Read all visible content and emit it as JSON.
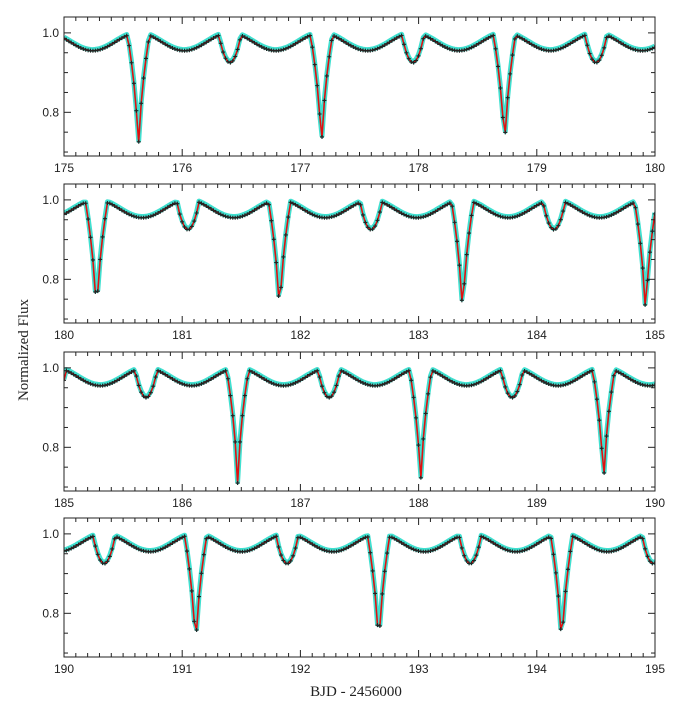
{
  "chart_data": {
    "type": "line",
    "title": "",
    "ylabel": "Normalized Flux",
    "xlabel": "BJD - 2456000",
    "colors": {
      "model": "#e01010",
      "data_points": "#222222",
      "residual_band": "#40e0d0",
      "frame": "#222222"
    },
    "light_curve": {
      "period": 1.5484,
      "primary_eclipse_epoch": 175.63,
      "primary_depth": 0.29,
      "secondary_depth": 0.075,
      "eclipse_half_width_phase": 0.06,
      "out_of_eclipse_flux": 1.0,
      "trough_flux": 0.955,
      "cadence_days": 0.0204
    },
    "panels": [
      {
        "name": "panel-1",
        "xlim": [
          175,
          180
        ],
        "ylim": [
          0.69,
          1.04
        ],
        "xticks": [
          175,
          176,
          177,
          178,
          179,
          180
        ],
        "xtick_labels": [
          "175",
          "176",
          "177",
          "178",
          "179",
          "180"
        ],
        "yticks": [
          0.8,
          1.0
        ],
        "ytick_labels": [
          "0.8",
          "1.0"
        ]
      },
      {
        "name": "panel-2",
        "xlim": [
          180,
          185
        ],
        "ylim": [
          0.69,
          1.04
        ],
        "xticks": [
          180,
          181,
          182,
          183,
          184,
          185
        ],
        "xtick_labels": [
          "180",
          "181",
          "182",
          "183",
          "184",
          "185"
        ],
        "yticks": [
          0.8,
          1.0
        ],
        "ytick_labels": [
          "0.8",
          "1.0"
        ]
      },
      {
        "name": "panel-3",
        "xlim": [
          185,
          190
        ],
        "ylim": [
          0.69,
          1.04
        ],
        "xticks": [
          185,
          186,
          187,
          188,
          189,
          190
        ],
        "xtick_labels": [
          "185",
          "186",
          "187",
          "188",
          "189",
          "190"
        ],
        "yticks": [
          0.8,
          1.0
        ],
        "ytick_labels": [
          "0.8",
          "1.0"
        ]
      },
      {
        "name": "panel-4",
        "xlim": [
          190,
          195
        ],
        "ylim": [
          0.69,
          1.04
        ],
        "xticks": [
          190,
          191,
          192,
          193,
          194,
          195
        ],
        "xtick_labels": [
          "190",
          "191",
          "192",
          "193",
          "194",
          "195"
        ],
        "yticks": [
          0.8,
          1.0
        ],
        "ytick_labels": [
          "0.8",
          "1.0"
        ]
      }
    ]
  }
}
